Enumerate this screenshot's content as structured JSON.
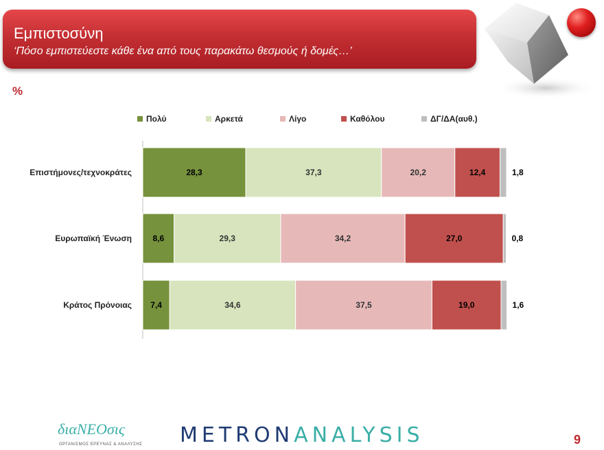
{
  "header": {
    "title": "Εμπιστοσύνη",
    "subtitle": "‘Πόσο εμπιστεύεστε κάθε ένα από τους παρακάτω θεσμούς ή δομές…’"
  },
  "unit_label": "%",
  "footer": {
    "left_logo": "διαΝΕΟσις",
    "left_logo_sub": "ΟΡΓΑΝΙΣΜΟΣ ΕΡΕΥΝΑΣ & ΑΝΑΛΥΣΗΣ",
    "brand_part1": "METRON",
    "brand_part2": "ANALYSIS",
    "page_number": "9"
  },
  "colors": {
    "header_red": "#c42f33",
    "accent_red": "#c0282d"
  },
  "chart_data": {
    "type": "bar",
    "orientation": "horizontal-stacked-100",
    "categories": [
      "Επιστήμονες/τεχνοκράτες",
      "Ευρωπαϊκή Ένωση",
      "Κράτος Πρόνοιας"
    ],
    "series": [
      {
        "name": "Πολύ",
        "color": "#76923c",
        "values": [
          28.3,
          8.6,
          7.4
        ],
        "labels": [
          "28,3",
          "8,6",
          "7,4"
        ]
      },
      {
        "name": "Αρκετά",
        "color": "#d7e4bd",
        "values": [
          37.3,
          29.3,
          34.6
        ],
        "labels": [
          "37,3",
          "29,3",
          "34,6"
        ]
      },
      {
        "name": "Λίγο",
        "color": "#e6b9b8",
        "values": [
          20.2,
          34.2,
          37.5
        ],
        "labels": [
          "20,2",
          "34,2",
          "37,5"
        ]
      },
      {
        "name": "Καθόλου",
        "color": "#c0504d",
        "values": [
          12.4,
          27.0,
          19.0
        ],
        "labels": [
          "12,4",
          "27,0",
          "19,0"
        ]
      },
      {
        "name": "ΔΓ/ΔΑ(αυθ.)",
        "color": "#bfbfbf",
        "values": [
          1.8,
          0.8,
          1.6
        ],
        "labels": [
          "1,8",
          "0,8",
          "1,6"
        ]
      }
    ],
    "legend_position": "top",
    "xlim": [
      0,
      100
    ]
  }
}
